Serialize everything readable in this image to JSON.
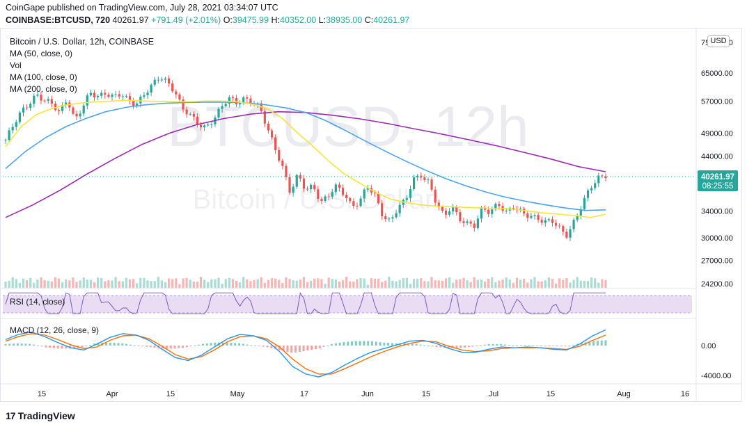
{
  "header": {
    "publisher_line": "CoinGape published on TradingView.com, July 28, 2021 03:34:07 UTC",
    "symbol": "COINBASE:BTCUSD, 720",
    "last": "40261.97",
    "change": "+791.49 (+2.01%)",
    "o_label": "O:",
    "o": "39475.99",
    "h_label": "H:",
    "h": "40352.00",
    "l_label": "L:",
    "l": "38935.00",
    "c_label": "C:",
    "c": "40261.97"
  },
  "legend": {
    "title": "Bitcoin / U.S. Dollar, 12h, COINBASE",
    "ma50": "MA (50, close, 0)",
    "vol": "Vol",
    "ma100": "MA (100, close, 0)",
    "ma200": "MA (200, close, 0)",
    "rsi": "RSI (14, close)",
    "macd": "MACD (12, 26, close, 9)"
  },
  "watermark": {
    "big": "BTCUSD, 12h",
    "sub": "Bitcoin / U.S. Dollar"
  },
  "currency_button": "USD",
  "price_badge": {
    "price": "40261.97",
    "countdown": "08:25:55",
    "color": "#26a69a"
  },
  "footer": {
    "brand": "TradingView",
    "logo": "17"
  },
  "colors": {
    "up": "#26a69a",
    "down": "#ef5350",
    "ma50": "#fbe23a",
    "ma100": "#4aa3ee",
    "ma200": "#9c27b0",
    "rsi": "#7e57c2",
    "macd": "#2196f3",
    "signal": "#ff6d00"
  },
  "chart_data": [
    {
      "type": "candlestick",
      "title": "Bitcoin / U.S. Dollar, 12h, COINBASE",
      "x_ticks": [
        "15",
        "Apr",
        "15",
        "May",
        "17",
        "Jun",
        "15",
        "Jul",
        "15",
        "Aug",
        "16"
      ],
      "y_ticks": [
        "75000.00",
        "65000.00",
        "57000.00",
        "49000.00",
        "44000.00",
        "34000.00",
        "30000.00",
        "27000.00",
        "24200.00"
      ],
      "ylim": [
        24200,
        75000
      ],
      "scale": "log",
      "closes": [
        47500,
        50500,
        54000,
        56500,
        59000,
        57000,
        56000,
        54000,
        58000,
        52000,
        55000,
        59000,
        58500,
        59500,
        58000,
        58500,
        57000,
        56500,
        59000,
        61000,
        63500,
        62500,
        60000,
        55000,
        53000,
        51000,
        50500,
        52500,
        55000,
        57500,
        56500,
        58000,
        57000,
        55000,
        50000,
        46000,
        42000,
        37000,
        40000,
        37500,
        38500,
        35500,
        36500,
        38000,
        37000,
        35000,
        35500,
        38000,
        36500,
        33500,
        32500,
        34500,
        35500,
        39500,
        40500,
        39000,
        35000,
        33000,
        35000,
        33000,
        32000,
        31500,
        34500,
        34000,
        35500,
        33500,
        34500,
        34000,
        33500,
        33000,
        32000,
        32500,
        31500,
        30500,
        32500,
        35000,
        38000,
        40000,
        40262
      ],
      "ma50": [
        46000,
        50500,
        53500,
        55000,
        56000,
        56500,
        56800,
        57000,
        57200,
        57000,
        56900,
        56800,
        56800,
        57000,
        57000,
        56800,
        56200,
        55000,
        52500,
        49000,
        46000,
        43000,
        40500,
        38800,
        37200,
        36000,
        35400,
        35000,
        34800,
        34700,
        34600,
        34500,
        34400,
        34300,
        34000,
        33700,
        33500,
        33300,
        33000,
        33500
      ],
      "ma100": [
        41500,
        45000,
        48000,
        50500,
        52500,
        54200,
        55300,
        56000,
        56400,
        56600,
        56700,
        56700,
        56500,
        56000,
        55200,
        54000,
        52000,
        49600,
        47200,
        45000,
        43000,
        41200,
        39600,
        38300,
        37200,
        36300,
        35600,
        35000,
        34500,
        34100,
        34200
      ],
      "ma200": [
        33000,
        35000,
        37500,
        40500,
        43500,
        46500,
        49000,
        51000,
        52500,
        53600,
        54200,
        54000,
        53300,
        52400,
        51300,
        50000,
        48800,
        47500,
        46200,
        44800,
        43400,
        41900,
        40900
      ]
    },
    {
      "type": "line",
      "title": "RSI (14, close)",
      "y_band": [
        30,
        70
      ]
    },
    {
      "type": "line",
      "title": "MACD (12, 26, close, 9)",
      "y_ticks": [
        "0.00",
        "-4000.00"
      ],
      "series": [
        {
          "values": [
            800,
            1500,
            1800,
            1200,
            400,
            -300,
            -600,
            200,
            1100,
            1600,
            1400,
            700,
            -500,
            -1600,
            -2000,
            -1300,
            -200,
            900,
            1500,
            1300,
            700,
            -800,
            -2800,
            -3800,
            -4200,
            -3600,
            -2600,
            -1700,
            -900,
            -400,
            100,
            600,
            700,
            300,
            -400,
            -900,
            -900,
            -500,
            -200,
            -300,
            -200,
            -300,
            -500,
            -600,
            200,
            1300,
            2100
          ]
        },
        {
          "values": [
            600,
            1200,
            1600,
            1400,
            800,
            100,
            -400,
            -200,
            700,
            1300,
            1400,
            900,
            -100,
            -1200,
            -1800,
            -1500,
            -600,
            500,
            1200,
            1300,
            900,
            -200,
            -1800,
            -3100,
            -3800,
            -3800,
            -3100,
            -2300,
            -1500,
            -800,
            -200,
            300,
            600,
            500,
            -100,
            -600,
            -800,
            -700,
            -400,
            -300,
            -300,
            -300,
            -400,
            -500,
            -100,
            700,
            1400
          ]
        }
      ]
    }
  ]
}
